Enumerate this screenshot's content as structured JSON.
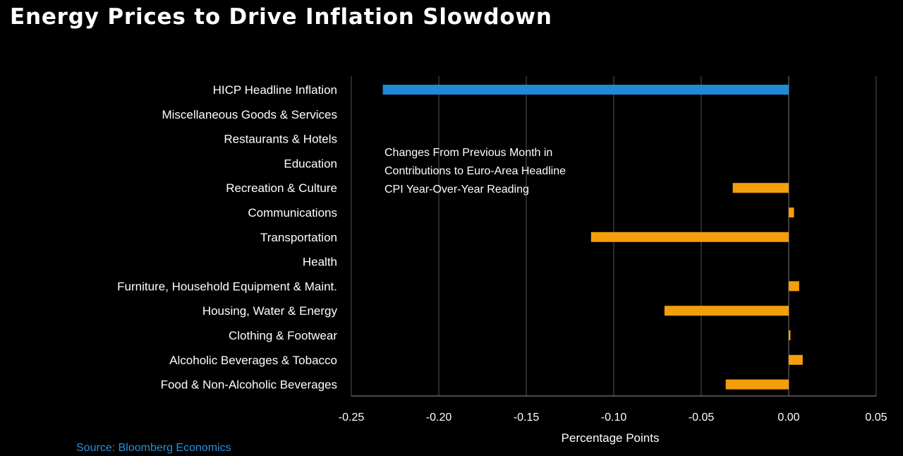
{
  "title": "Energy Prices to Drive Inflation Slowdown",
  "source": "Source: Bloomberg Economics",
  "colors": {
    "background": "#000000",
    "headline_bar": "#1f8ad6",
    "component_bar": "#f59e0b",
    "grid": "#555555",
    "text": "#ffffff",
    "source_text": "#2a8fd8"
  },
  "chart_data": {
    "type": "bar",
    "orientation": "horizontal",
    "title": "Energy Prices to Drive Inflation Slowdown",
    "annotation": [
      "Changes From Previous Month in",
      "Contributions to Euro-Area Headline",
      "CPI Year-Over-Year Reading"
    ],
    "xlabel": "Percentage Points",
    "ylabel": "",
    "xlim": [
      -0.25,
      0.05
    ],
    "xticks": [
      -0.25,
      -0.2,
      -0.15,
      -0.1,
      -0.05,
      0.0,
      0.05
    ],
    "xtick_labels": [
      "-0.25",
      "-0.20",
      "-0.15",
      "-0.10",
      "-0.05",
      "0.00",
      "0.05"
    ],
    "grid": "vertical",
    "categories": [
      "HICP Headline Inflation",
      "Miscellaneous Goods & Services",
      "Restaurants & Hotels",
      "Education",
      "Recreation & Culture",
      "Communications",
      "Transportation",
      "Health",
      "Furniture, Household Equipment & Maint.",
      "Housing, Water & Energy",
      "Clothing & Footwear",
      "Alcoholic Beverages & Tobacco",
      "Food & Non-Alcoholic Beverages"
    ],
    "values": [
      -0.232,
      0.0,
      0.0,
      0.0,
      -0.032,
      0.003,
      -0.113,
      0.0,
      0.006,
      -0.071,
      0.001,
      0.008,
      -0.036
    ],
    "series_color_keys": [
      "headline_bar",
      "component_bar",
      "component_bar",
      "component_bar",
      "component_bar",
      "component_bar",
      "component_bar",
      "component_bar",
      "component_bar",
      "component_bar",
      "component_bar",
      "component_bar",
      "component_bar"
    ]
  }
}
